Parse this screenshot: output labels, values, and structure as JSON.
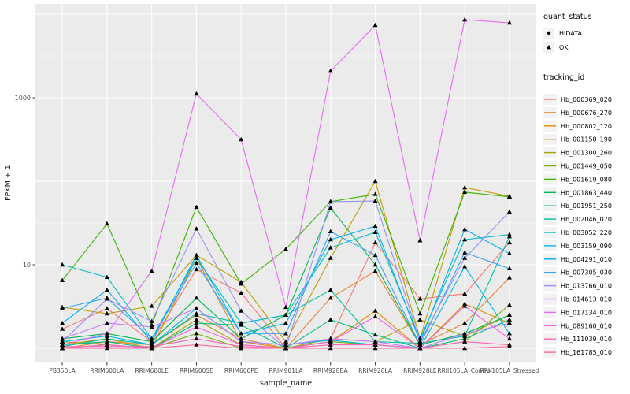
{
  "chart_data": {
    "type": "line",
    "title": "",
    "xlabel": "sample_name",
    "ylabel": "FPKM + 1",
    "y_scale": "log10",
    "y_tick_labels": [
      "10",
      "1000"
    ],
    "y_tick_values": [
      10,
      1000
    ],
    "y_major_gridlines": [
      1,
      10,
      100,
      1000,
      10000
    ],
    "y_minor_gridlines": [
      3.162,
      31.62,
      316.2,
      3162
    ],
    "ylim": [
      0.93,
      13000
    ],
    "grid": "on",
    "panel_bg": "#EBEBEB",
    "gridline_color": "#FFFFFF",
    "marker_shape": "triangle",
    "marker_color": "#000000",
    "categories": [
      "PB350LA",
      "RRIM600LA",
      "RRIM600LE",
      "RRIM600SE",
      "RRIM600PE",
      "RRIM901LA",
      "RRIM928BA",
      "RRIM928LA",
      "RRIM928LE",
      "RRII105LA_Control",
      "RRII105LA_Stressed"
    ],
    "series": [
      {
        "name": "Hb_000369_020",
        "color": "#F8766D",
        "values": [
          1.7,
          3.0,
          1.2,
          8.8,
          4.6,
          1.0,
          1.3,
          18.4,
          3.9,
          4.5,
          18.4
        ]
      },
      {
        "name": "Hb_000676_270",
        "color": "#EA8331",
        "values": [
          1.0,
          1.2,
          1.1,
          2.5,
          1.3,
          1.0,
          4.0,
          8.4,
          1.1,
          2.0,
          7.0
        ]
      },
      {
        "name": "Hb_000802_120",
        "color": "#D89000",
        "values": [
          1.1,
          1.3,
          1.0,
          12.0,
          1.2,
          1.0,
          1.2,
          2.8,
          1.0,
          3.4,
          2.0
        ]
      },
      {
        "name": "Hb_001158_190",
        "color": "#C09B00",
        "values": [
          3.1,
          2.6,
          3.2,
          13.0,
          6.2,
          1.2,
          12.0,
          100.0,
          1.3,
          84.0,
          66.0
        ]
      },
      {
        "name": "Hb_001300_260",
        "color": "#A3A500",
        "values": [
          1.2,
          1.1,
          1.0,
          2.2,
          1.1,
          1.0,
          1.3,
          1.2,
          2.2,
          1.4,
          2.5
        ]
      },
      {
        "name": "Hb_001449_050",
        "color": "#7CAE00",
        "values": [
          1.0,
          1.1,
          1.0,
          1.5,
          1.0,
          1.0,
          1.2,
          1.1,
          1.0,
          1.2,
          3.3
        ]
      },
      {
        "name": "Hb_001619_080",
        "color": "#39B600",
        "values": [
          6.5,
          31.0,
          1.9,
          49.0,
          5.9,
          15.4,
          57.0,
          70.0,
          2.6,
          74.0,
          65.0
        ]
      },
      {
        "name": "Hb_001863_440",
        "color": "#00BB4E",
        "values": [
          1.3,
          1.5,
          1.2,
          4.0,
          1.3,
          2.5,
          48.0,
          10.0,
          1.1,
          1.5,
          2.5
        ]
      },
      {
        "name": "Hb_001951_250",
        "color": "#00BF7D",
        "values": [
          1.1,
          1.2,
          1.0,
          2.0,
          1.9,
          1.0,
          2.2,
          1.45,
          1.0,
          1.3,
          2.2
        ]
      },
      {
        "name": "Hb_002046_070",
        "color": "#00C1A3",
        "values": [
          1.05,
          1.3,
          1.1,
          2.6,
          2.0,
          2.5,
          5.0,
          1.2,
          1.15,
          1.4,
          21.8
        ]
      },
      {
        "name": "Hb_003052_220",
        "color": "#00BFC4",
        "values": [
          10.0,
          7.1,
          1.3,
          12.0,
          2.0,
          2.5,
          16.0,
          24.5,
          1.3,
          20.0,
          23.0
        ]
      },
      {
        "name": "Hb_003159_090",
        "color": "#00BAE0",
        "values": [
          1.2,
          1.4,
          1.1,
          3.0,
          1.2,
          1.1,
          1.25,
          1.1,
          1.0,
          9.5,
          1.5
        ]
      },
      {
        "name": "Hb_004291_010",
        "color": "#00B0F6",
        "values": [
          2.0,
          5.0,
          1.2,
          13.0,
          1.5,
          2.0,
          20.0,
          29.0,
          1.2,
          26.5,
          13.6
        ]
      },
      {
        "name": "Hb_007305_030",
        "color": "#35A2FF",
        "values": [
          3.0,
          4.0,
          1.3,
          10.5,
          1.5,
          1.5,
          25.0,
          13.0,
          1.1,
          14.0,
          9.0
        ]
      },
      {
        "name": "Hb_013766_010",
        "color": "#9590FF",
        "values": [
          1.2,
          3.9,
          2.1,
          27.0,
          2.8,
          1.0,
          57.0,
          58.0,
          1.2,
          12.0,
          43.0
        ]
      },
      {
        "name": "Hb_014613_010",
        "color": "#C77CFF",
        "values": [
          1.3,
          2.0,
          1.8,
          3.0,
          1.2,
          1.1,
          1.3,
          1.2,
          1.0,
          1.5,
          2.0
        ]
      },
      {
        "name": "Hb_017134_010",
        "color": "#E76BF3",
        "values": [
          1.1,
          1.5,
          8.4,
          1114.0,
          316.0,
          3.1,
          2090.0,
          7380.0,
          19.5,
          8590.0,
          7870.0
        ]
      },
      {
        "name": "Hb_089160_010",
        "color": "#FA62DB",
        "values": [
          1.0,
          1.1,
          1.0,
          1.8,
          1.1,
          1.0,
          1.2,
          2.4,
          1.0,
          3.2,
          1.3
        ]
      },
      {
        "name": "Hb_111039_010",
        "color": "#FF62BC",
        "values": [
          1.05,
          1.05,
          1.05,
          1.3,
          1.05,
          1.0,
          1.1,
          1.1,
          1.0,
          1.2,
          1.1
        ]
      },
      {
        "name": "Hb_161785_010",
        "color": "#FF6A98",
        "values": [
          1.0,
          1.0,
          1.0,
          1.1,
          1.0,
          1.0,
          1.0,
          1.0,
          1.0,
          1.0,
          1.05
        ]
      }
    ]
  },
  "legend": {
    "quant_status": {
      "title": "quant_status",
      "items": [
        {
          "label": "HIDATA",
          "shape": "circle"
        },
        {
          "label": "OK",
          "shape": "triangle"
        }
      ]
    },
    "tracking_id": {
      "title": "tracking_id"
    },
    "key_bg": "#F2F2F2"
  },
  "axis": {
    "tick_color": "#333333",
    "tick_label_color": "#4D4D4D",
    "title_color": "#1A1A1A"
  }
}
